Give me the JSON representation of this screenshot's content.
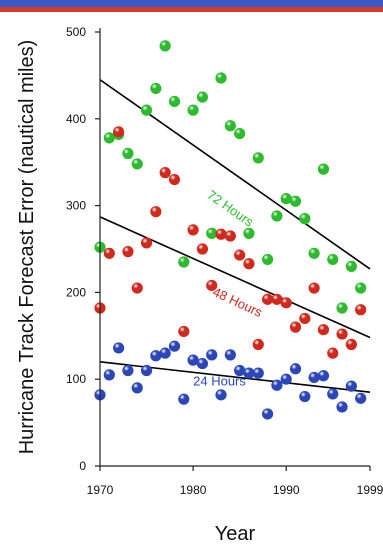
{
  "header_bar": {
    "color_top": "#3a5bc7",
    "color_bottom": "#d43a2a"
  },
  "chart_data": {
    "type": "scatter",
    "title": "",
    "xlabel": "Year",
    "ylabel": "Hurricane Track Forecast Error (nautical miles)",
    "xlim": [
      1970,
      1999
    ],
    "ylim": [
      0,
      500
    ],
    "x_ticks": [
      "1970",
      "1980",
      "1990",
      "1999"
    ],
    "x_tick_values": [
      1970,
      1980,
      1990,
      1999
    ],
    "y_ticks": [
      "0",
      "100",
      "200",
      "300",
      "400",
      "500"
    ],
    "y_tick_values": [
      0,
      100,
      200,
      300,
      400,
      500
    ],
    "series": [
      {
        "name": "72 Hours",
        "color": "#2dbb2d",
        "line_color": "#000000",
        "trend": {
          "start": [
            1970,
            445
          ],
          "end": [
            1999,
            227
          ]
        },
        "points": [
          [
            1970,
            252
          ],
          [
            1971,
            378
          ],
          [
            1972,
            382
          ],
          [
            1973,
            360
          ],
          [
            1974,
            348
          ],
          [
            1975,
            410
          ],
          [
            1976,
            435
          ],
          [
            1977,
            484
          ],
          [
            1978,
            420
          ],
          [
            1979,
            235
          ],
          [
            1980,
            410
          ],
          [
            1981,
            425
          ],
          [
            1982,
            268
          ],
          [
            1983,
            447
          ],
          [
            1984,
            392
          ],
          [
            1985,
            383
          ],
          [
            1986,
            268
          ],
          [
            1987,
            355
          ],
          [
            1988,
            238
          ],
          [
            1989,
            288
          ],
          [
            1990,
            308
          ],
          [
            1991,
            305
          ],
          [
            1992,
            285
          ],
          [
            1993,
            245
          ],
          [
            1994,
            342
          ],
          [
            1995,
            238
          ],
          [
            1996,
            182
          ],
          [
            1997,
            230
          ],
          [
            1998,
            205
          ]
        ]
      },
      {
        "name": "48 Hours",
        "color": "#d02a1e",
        "line_color": "#000000",
        "trend": {
          "start": [
            1970,
            287
          ],
          "end": [
            1999,
            148
          ]
        },
        "points": [
          [
            1970,
            182
          ],
          [
            1971,
            245
          ],
          [
            1972,
            385
          ],
          [
            1973,
            247
          ],
          [
            1974,
            205
          ],
          [
            1975,
            257
          ],
          [
            1976,
            293
          ],
          [
            1977,
            338
          ],
          [
            1978,
            330
          ],
          [
            1979,
            155
          ],
          [
            1980,
            272
          ],
          [
            1981,
            250
          ],
          [
            1982,
            208
          ],
          [
            1983,
            267
          ],
          [
            1984,
            265
          ],
          [
            1985,
            243
          ],
          [
            1986,
            233
          ],
          [
            1987,
            140
          ],
          [
            1988,
            192
          ],
          [
            1989,
            192
          ],
          [
            1990,
            188
          ],
          [
            1991,
            160
          ],
          [
            1992,
            170
          ],
          [
            1993,
            205
          ],
          [
            1994,
            157
          ],
          [
            1995,
            130
          ],
          [
            1996,
            152
          ],
          [
            1997,
            140
          ],
          [
            1998,
            180
          ]
        ]
      },
      {
        "name": "24 Hours",
        "color": "#2a46b8",
        "line_color": "#000000",
        "trend": {
          "start": [
            1970,
            120
          ],
          "end": [
            1999,
            85
          ]
        },
        "points": [
          [
            1970,
            82
          ],
          [
            1971,
            105
          ],
          [
            1972,
            136
          ],
          [
            1973,
            110
          ],
          [
            1974,
            90
          ],
          [
            1975,
            110
          ],
          [
            1976,
            127
          ],
          [
            1977,
            130
          ],
          [
            1978,
            138
          ],
          [
            1979,
            77
          ],
          [
            1980,
            122
          ],
          [
            1981,
            118
          ],
          [
            1982,
            128
          ],
          [
            1983,
            82
          ],
          [
            1984,
            128
          ],
          [
            1985,
            110
          ],
          [
            1986,
            107
          ],
          [
            1987,
            107
          ],
          [
            1988,
            60
          ],
          [
            1989,
            93
          ],
          [
            1990,
            100
          ],
          [
            1991,
            112
          ],
          [
            1992,
            80
          ],
          [
            1993,
            102
          ],
          [
            1994,
            104
          ],
          [
            1995,
            83
          ],
          [
            1996,
            68
          ],
          [
            1997,
            92
          ],
          [
            1998,
            78
          ]
        ]
      }
    ]
  }
}
